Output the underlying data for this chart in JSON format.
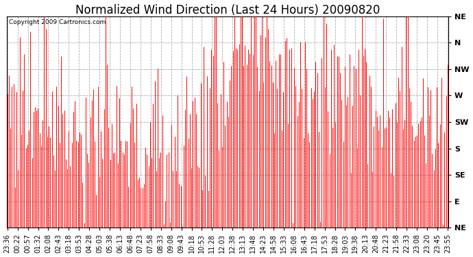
{
  "title": "Normalized Wind Direction (Last 24 Hours) 20090820",
  "copyright": "Copyright 2009 Cartronics.com",
  "bar_color": "#ff0000",
  "background_color": "#ffffff",
  "grid_color": "#aaaaaa",
  "ytick_labels": [
    "NE",
    "N",
    "NW",
    "W",
    "SW",
    "S",
    "SE",
    "E",
    "NE"
  ],
  "ytick_values": [
    8,
    7,
    6,
    5,
    4,
    3,
    2,
    1,
    0
  ],
  "ylim": [
    0,
    8
  ],
  "xtick_labels": [
    "23:36",
    "00:22",
    "00:57",
    "01:32",
    "02:08",
    "02:43",
    "03:18",
    "03:53",
    "04:28",
    "05:03",
    "05:38",
    "06:13",
    "06:48",
    "07:23",
    "07:58",
    "08:33",
    "09:08",
    "09:43",
    "10:18",
    "10:53",
    "11:28",
    "12:03",
    "12:38",
    "13:13",
    "13:48",
    "14:23",
    "14:58",
    "15:33",
    "16:08",
    "16:43",
    "17:18",
    "17:53",
    "18:28",
    "19:03",
    "19:38",
    "20:13",
    "20:48",
    "21:23",
    "21:58",
    "22:33",
    "23:08",
    "23:20",
    "23:45",
    "23:55"
  ],
  "title_fontsize": 12,
  "label_fontsize": 8,
  "figwidth": 6.9,
  "figheight": 3.75,
  "dpi": 100
}
